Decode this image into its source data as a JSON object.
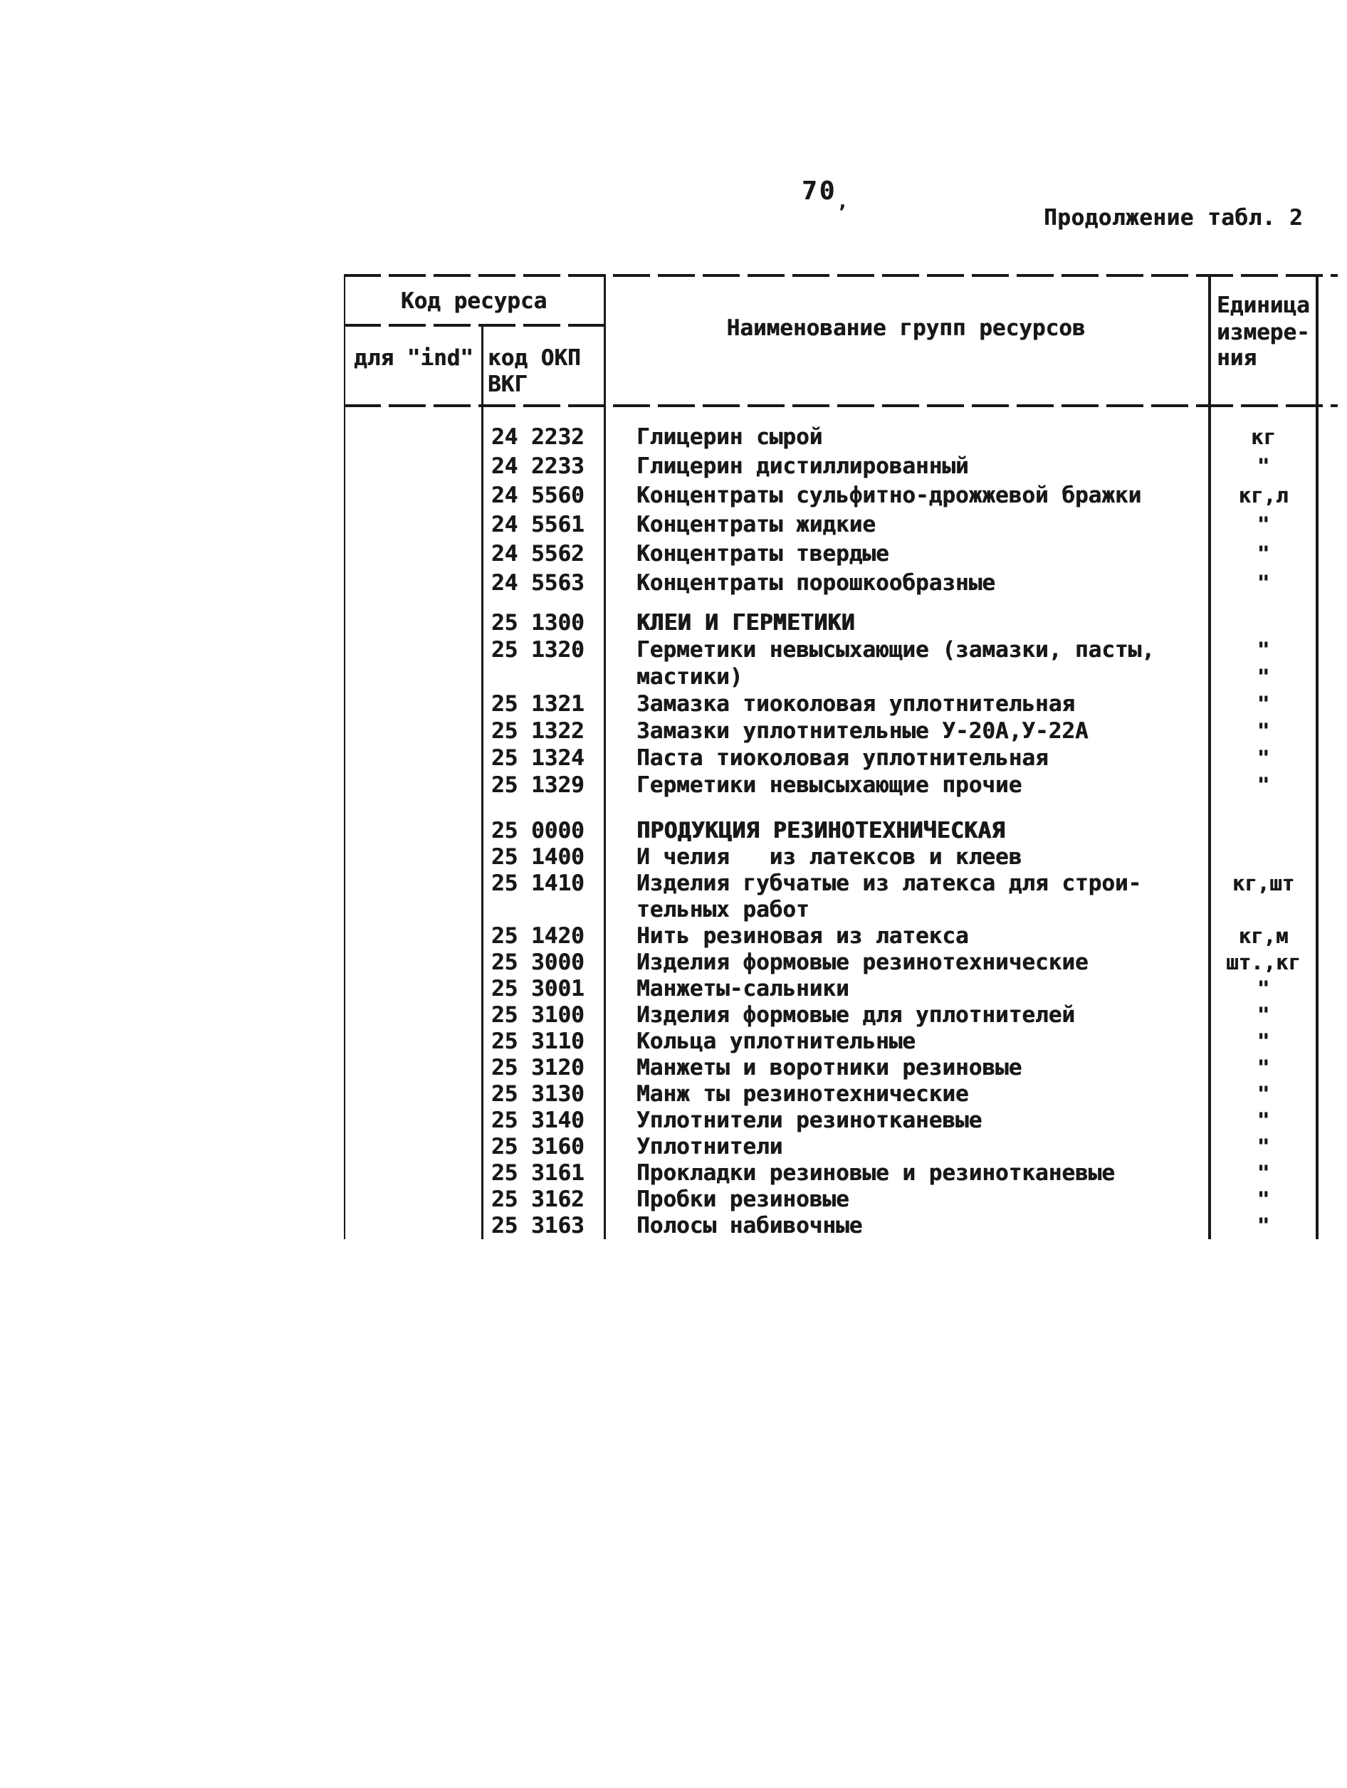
{
  "page": {
    "number": "70",
    "number_mark": ",",
    "continuation": "Продолжение табл. 2"
  },
  "table": {
    "header": {
      "code_group": "Код ресурса",
      "ind_col": "для \"ind\"",
      "okp_col_line1": "код ОКП",
      "okp_col_line2": "ВКГ",
      "name_col": "Наименование групп ресурсов",
      "unit_col_line1": "Единица",
      "unit_col_line2": "измере-",
      "unit_col_line3": "ния"
    },
    "rows": [
      {
        "code": "24 2232",
        "name": "Глицерин сырой",
        "unit": "кг",
        "cls": "a"
      },
      {
        "code": "24 2233",
        "name": "Глицерин дистиллированный",
        "unit": "\"",
        "cls": "a"
      },
      {
        "code": "24 5560",
        "name": "Концентраты сульфитно-дрожжевой бражки",
        "unit": "кг,л",
        "cls": "a"
      },
      {
        "code": "24 5561",
        "name": "Концентраты жидкие",
        "unit": "\"",
        "cls": "a"
      },
      {
        "code": "24 5562",
        "name": "Концентраты твердые",
        "unit": "\"",
        "cls": "a"
      },
      {
        "code": "24 5563",
        "name": "Концентраты порошкообразные",
        "unit": "\"",
        "cls": "a"
      },
      {
        "code": "25 1300",
        "name": "КЛЕИ И ГЕРМЕТИКИ",
        "unit": "",
        "cls": "b",
        "gap": 16,
        "emph": true
      },
      {
        "code": "25 1320",
        "name": "Герметики невысыхающие (замазки, пасты,",
        "unit": "\"",
        "cls": "b"
      },
      {
        "code": "",
        "name": "мастики)",
        "unit": "\"",
        "cls": "b"
      },
      {
        "code": "25 1321",
        "name": "Замазка тиоколовая уплотнительная",
        "unit": "\"",
        "cls": "b"
      },
      {
        "code": "25 1322",
        "name": "Замазки уплотнительные У-20А,У-22А",
        "unit": "\"",
        "cls": "b"
      },
      {
        "code": "25 1324",
        "name": "Паста тиоколовая уплотнительная",
        "unit": "\"",
        "cls": "b"
      },
      {
        "code": "25 1329",
        "name": "Герметики невысыхающие прочие",
        "unit": "\"",
        "cls": "b"
      },
      {
        "code": "25 0000",
        "name": "ПРОДУКЦИЯ РЕЗИНОТЕХНИЧЕСКАЯ",
        "unit": "",
        "cls": "c",
        "gap": 27,
        "emph": true
      },
      {
        "code": "25 1400",
        "name": "И челия   из латексов и клеев",
        "unit": "",
        "cls": "c"
      },
      {
        "code": "25 1410",
        "name": "Изделия губчатые из латекса для строи-",
        "unit": "кг,шт",
        "cls": "c"
      },
      {
        "code": "",
        "name": "тельных работ",
        "unit": "",
        "cls": "c"
      },
      {
        "code": "25 1420",
        "name": "Нить резиновая из латекса",
        "unit": "кг,м",
        "cls": "c"
      },
      {
        "code": "25 3000",
        "name": "Изделия формовые резинотехнические",
        "unit": "шт.,кг",
        "cls": "c"
      },
      {
        "code": "25 3001",
        "name": "Манжеты-сальники",
        "unit": "\"",
        "cls": "c"
      },
      {
        "code": "25 3100",
        "name": "Изделия формовые для уплотнителей",
        "unit": "\"",
        "cls": "c"
      },
      {
        "code": "25 3110",
        "name": "Кольца уплотнительные",
        "unit": "\"",
        "cls": "c"
      },
      {
        "code": "25 3120",
        "name": "Манжеты и воротники резиновые",
        "unit": "\"",
        "cls": "c"
      },
      {
        "code": "25 3130",
        "name": "Манж ты резинотехнические",
        "unit": "\"",
        "cls": "c"
      },
      {
        "code": "25 3140",
        "name": "Уплотнители резинотканевые",
        "unit": "\"",
        "cls": "c"
      },
      {
        "code": "25 3160",
        "name": "Уплотнители",
        "unit": "\"",
        "cls": "c"
      },
      {
        "code": "25 3161",
        "name": "Прокладки резиновые и резинотканевые",
        "unit": "\"",
        "cls": "c"
      },
      {
        "code": "25 3162",
        "name": "Пробки резиновые",
        "unit": "\"",
        "cls": "c"
      },
      {
        "code": "25 3163",
        "name": "Полосы набивочные",
        "unit": "\"",
        "cls": "c"
      }
    ]
  }
}
